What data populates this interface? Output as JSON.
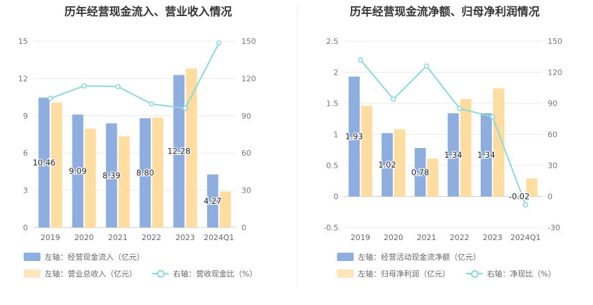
{
  "colors": {
    "bar1": "#8eaee0",
    "bar2": "#ffdca0",
    "line": "#8ed7da"
  },
  "chart_data": [
    {
      "type": "bar",
      "title": "历年经营现金流入、营业收入情况",
      "categories": [
        "2019",
        "2020",
        "2021",
        "2022",
        "2023",
        "2024Q1"
      ],
      "y_left": {
        "ticks": [
          "0",
          "3",
          "6",
          "9",
          "12",
          "15"
        ],
        "min": 0,
        "max": 15
      },
      "y_right": {
        "ticks": [
          "0",
          "30",
          "60",
          "90",
          "120",
          "150"
        ],
        "min": 0,
        "max": 150
      },
      "series": [
        {
          "name": "左轴：经营现金流入（亿元）",
          "axis": "left",
          "kind": "bar",
          "values": [
            10.46,
            9.09,
            8.39,
            8.8,
            12.28,
            4.27
          ],
          "labels": [
            "10.46",
            "9.09",
            "8.39",
            "8.80",
            "12.28",
            "4.27"
          ]
        },
        {
          "name": "左轴：营业总收入（亿元）",
          "axis": "left",
          "kind": "bar",
          "values": [
            10.05,
            7.95,
            7.35,
            8.85,
            12.8,
            2.9
          ]
        },
        {
          "name": "右轴：营收现金比（%）",
          "axis": "right",
          "kind": "line",
          "values": [
            104,
            114,
            113.5,
            99.5,
            96,
            148.5
          ]
        }
      ]
    },
    {
      "type": "bar",
      "title": "历年经营现金流净额、归母净利润情况",
      "categories": [
        "2019",
        "2020",
        "2021",
        "2022",
        "2023",
        "2024Q1"
      ],
      "y_left": {
        "ticks": [
          "-0.5",
          "0",
          "0.5",
          "1",
          "1.5",
          "2",
          "2.5"
        ],
        "min": -0.5,
        "max": 2.5
      },
      "y_right": {
        "ticks": [
          "-30",
          "0",
          "30",
          "60",
          "90",
          "120",
          "150"
        ],
        "min": -30,
        "max": 150
      },
      "series": [
        {
          "name": "左轴：经营活动现金流净额（亿元）",
          "axis": "left",
          "kind": "bar",
          "values": [
            1.93,
            1.02,
            0.78,
            1.34,
            1.34,
            -0.02
          ],
          "labels": [
            "1.93",
            "1.02",
            "0.78",
            "1.34",
            "1.34",
            "-0.02"
          ]
        },
        {
          "name": "左轴：归母净利润（亿元）",
          "axis": "left",
          "kind": "bar",
          "values": [
            1.46,
            1.08,
            0.61,
            1.57,
            1.74,
            0.29
          ]
        },
        {
          "name": "右轴：净现比（%）",
          "axis": "right",
          "kind": "line",
          "values": [
            132,
            94,
            126,
            85,
            77,
            -8
          ]
        }
      ]
    }
  ]
}
